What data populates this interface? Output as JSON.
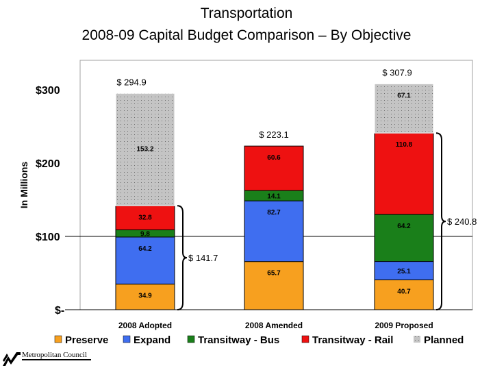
{
  "title_line1": "Transportation",
  "title_line2": "2008-09 Capital Budget Comparison – By Objective",
  "logo_text": "Metropolitan Council",
  "chart_data": {
    "type": "bar",
    "stacked": true,
    "ylabel": "In Millions",
    "ylim": [
      0,
      340
    ],
    "yticks": [
      {
        "value": 0,
        "label": "$-"
      },
      {
        "value": 100,
        "label": "$100"
      },
      {
        "value": 200,
        "label": "$200"
      },
      {
        "value": 300,
        "label": "$300"
      }
    ],
    "categories": [
      "2008 Adopted",
      "2008 Amended",
      "2009 Proposed"
    ],
    "series": [
      {
        "name": "Preserve",
        "color": "#f7a01f",
        "values": [
          34.9,
          65.7,
          40.7
        ]
      },
      {
        "name": "Expand",
        "color": "#3f6ef0",
        "values": [
          64.2,
          82.7,
          25.1
        ]
      },
      {
        "name": "Transitway - Bus",
        "color": "#1a7f1a",
        "values": [
          9.8,
          14.1,
          64.2
        ]
      },
      {
        "name": "Transitway - Rail",
        "color": "#ee1111",
        "values": [
          32.8,
          60.6,
          110.8
        ]
      },
      {
        "name": "Planned",
        "color": "#c4c4c4",
        "values": [
          153.2,
          0,
          67.1
        ]
      }
    ],
    "totals": [
      "$ 294.9",
      "$ 223.1",
      "$ 307.9"
    ],
    "bracket_annotations": [
      {
        "category": "2008 Adopted",
        "from": 0,
        "to": 141.7,
        "label": "$ 141.7",
        "side": "right"
      },
      {
        "category": "2009 Proposed",
        "from": 0,
        "to": 240.8,
        "label": "$ 240.8",
        "side": "right"
      }
    ],
    "legend_position": "bottom"
  }
}
